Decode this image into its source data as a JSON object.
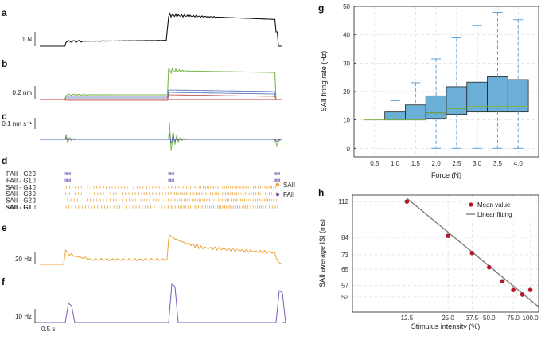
{
  "colors": {
    "force": "#111111",
    "green": "#7ab648",
    "blue": "#4a68b5",
    "red": "#c0392b",
    "orange": "#eba43a",
    "purple": "#7d5bbf",
    "bar": "#6baed6",
    "bar_edge": "#222222",
    "whisker": "#5aa0d8",
    "marker": "#b5172a",
    "fit": "#777777"
  },
  "left": {
    "labels": {
      "a": "a",
      "b": "b",
      "c": "c",
      "d": "d",
      "e": "e",
      "f": "f"
    },
    "scales": {
      "a": "1 N",
      "b": "0.2 nm",
      "c": "0.1 nm s⁻¹",
      "e": "20 Hz",
      "f": "10 Hz",
      "time": "0.5 s"
    },
    "raster_rows": [
      "FAII - G2",
      "FAII - G1",
      "SAII - G4",
      "SAII - G3",
      "SAII - G2",
      "SAII - G1"
    ],
    "legend": [
      "SAII",
      "FAII"
    ]
  },
  "chart_data": [
    {
      "panel": "g",
      "type": "bar",
      "categories": [
        "0.5",
        "1.0",
        "1.5",
        "2.0",
        "2.5",
        "3.0",
        "3.5",
        "4.0"
      ],
      "values": [
        10,
        12.8,
        15.3,
        18.5,
        21.7,
        23.3,
        25.2,
        24.2
      ],
      "medians": [
        10,
        10,
        10,
        12.5,
        14,
        14.8,
        14.8,
        14.8
      ],
      "whisker_low": [
        10,
        10,
        10,
        0,
        0,
        0,
        0,
        0
      ],
      "whisker_high": [
        10,
        16.8,
        23.1,
        31.5,
        38.9,
        43.2,
        47.9,
        45.3
      ],
      "yticks": [
        0,
        10,
        20,
        30,
        40,
        50
      ],
      "ylim": [
        -3,
        50
      ],
      "xlabel": "Force (N)",
      "ylabel": "SAII firing rate (Hz)",
      "grid": true
    },
    {
      "panel": "h",
      "type": "scatter",
      "x": [
        12.5,
        25.0,
        37.5,
        50.0,
        62.5,
        75.0,
        87.5,
        100.0
      ],
      "y": [
        112,
        85,
        74,
        66,
        59,
        55,
        53,
        55
      ],
      "fit_x": [
        12.5,
        115
      ],
      "fit_y": [
        115,
        48
      ],
      "xticks": [
        "12.5",
        "25.0",
        "37.5",
        "50.0",
        "75.0",
        "100.0"
      ],
      "xtick_values": [
        12.5,
        25.0,
        37.5,
        50.0,
        75.0,
        100.0
      ],
      "yticks": [
        "112",
        "84",
        "73",
        "65",
        "57",
        "52"
      ],
      "ytick_values": [
        112,
        84,
        73,
        65,
        57,
        52
      ],
      "xlabel": "Stimulus intensity (%)",
      "ylabel": "SAII average ISI (ms)",
      "legend": [
        "Mean value",
        "Linear fitting"
      ],
      "grid": true
    }
  ],
  "panel_labels": {
    "g": "g",
    "h": "h"
  }
}
